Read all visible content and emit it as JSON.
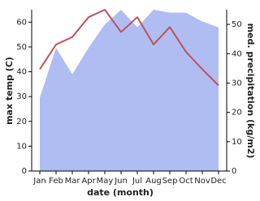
{
  "chart_data": {
    "type": "line",
    "x_label": "date (month)",
    "y_label": "max temp (C)",
    "y2_label": "med. precipitation (kg/m2)",
    "categories": [
      "Jan",
      "Feb",
      "Mar",
      "Apr",
      "May",
      "Jun",
      "Jul",
      "Aug",
      "Sep",
      "Oct",
      "Nov",
      "Dec"
    ],
    "series": [
      {
        "name": "med. precipitation",
        "type": "area",
        "axis": "y2",
        "color": "#b0bdf2",
        "values": [
          25,
          42,
          33,
          42,
          50,
          55,
          49,
          55,
          54,
          54,
          51,
          49
        ]
      },
      {
        "name": "max temp",
        "type": "line",
        "axis": "y",
        "color": "#c0525a",
        "values": [
          41,
          51,
          54,
          62,
          65,
          56,
          62,
          51,
          58,
          48,
          41,
          34.5
        ]
      }
    ],
    "ylim": [
      0,
      65
    ],
    "yticks": [
      0,
      10,
      20,
      30,
      40,
      50,
      60
    ],
    "y2lim": [
      0,
      55
    ],
    "y2ticks": [
      0,
      10,
      20,
      30,
      40,
      50
    ]
  }
}
